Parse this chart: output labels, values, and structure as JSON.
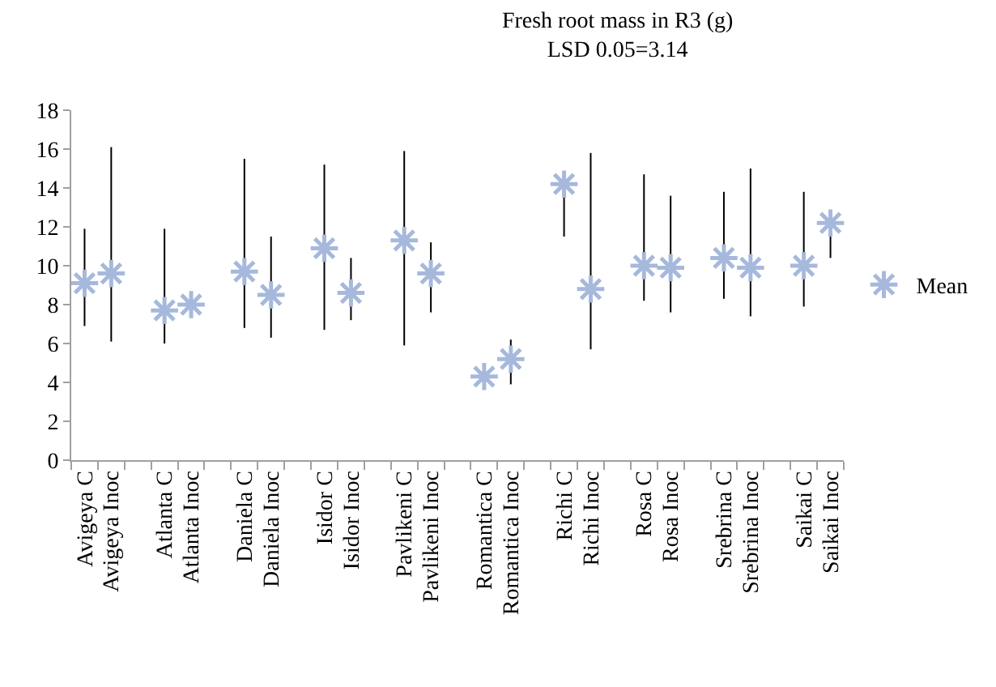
{
  "chart_data": {
    "type": "scatter",
    "title": "Fresh root mass in R3 (g)",
    "subtitle": "LSD 0.05=3.14",
    "categories": [
      "Avigeya C",
      "Avigeya Inoc",
      null,
      "Atlanta C",
      "Atlanta Inoc",
      null,
      "Daniela C",
      "Daniela Inoc",
      null,
      "Isidor C",
      "Isidor Inoc",
      null,
      "Pavlikeni C",
      "Pavlikeni Inoc",
      null,
      "Romantica C",
      "Romantica Inoc",
      null,
      "Richi C",
      "Richi Inoc",
      null,
      "Rosa C",
      "Rosa Inoc",
      null,
      "Srebrina C",
      "Srebrina Inoc",
      null,
      "Saikai C",
      "Saikai Inoc"
    ],
    "series": [
      {
        "name": "Mean",
        "color": "#a6b9dc",
        "values": [
          9.1,
          9.6,
          null,
          7.7,
          8.0,
          null,
          9.7,
          8.5,
          null,
          10.9,
          8.6,
          null,
          11.3,
          9.6,
          null,
          4.3,
          5.2,
          null,
          14.2,
          8.8,
          null,
          10.0,
          9.9,
          null,
          10.4,
          9.9,
          null,
          10.0,
          12.2
        ],
        "errors": [
          [
            6.9,
            11.9
          ],
          [
            6.1,
            16.1
          ],
          null,
          [
            6.0,
            11.9
          ],
          null,
          null,
          [
            6.8,
            15.5
          ],
          [
            6.3,
            11.5
          ],
          null,
          [
            6.7,
            15.2
          ],
          [
            7.2,
            10.4
          ],
          null,
          [
            5.9,
            15.9
          ],
          [
            7.6,
            11.2
          ],
          null,
          null,
          [
            3.9,
            6.2
          ],
          null,
          [
            11.5,
            14.2
          ],
          [
            5.7,
            15.8
          ],
          null,
          [
            8.2,
            14.7
          ],
          [
            7.6,
            13.6
          ],
          null,
          [
            8.3,
            13.8
          ],
          [
            7.4,
            15.0
          ],
          null,
          [
            7.9,
            13.8
          ],
          [
            10.4,
            12.2
          ]
        ]
      }
    ],
    "ylim": [
      0,
      18
    ],
    "yticks": [
      0,
      2,
      4,
      6,
      8,
      10,
      12,
      14,
      16,
      18
    ],
    "marker": "cross",
    "legend": "right",
    "grid": false
  }
}
